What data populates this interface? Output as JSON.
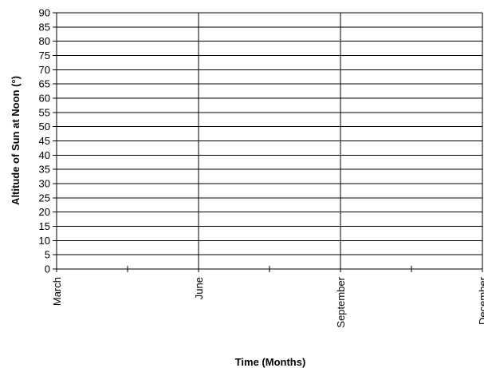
{
  "chart_data": {
    "type": "line",
    "title": "",
    "xlabel": "Time (Months)",
    "ylabel": "Altitude of Sun at Noon (°)",
    "x_categories": [
      "March",
      "June",
      "September",
      "December"
    ],
    "x_minor_ticks_between_labels": 1,
    "ylim": [
      0,
      90
    ],
    "y_tick_step": 5,
    "y_ticks": [
      0,
      5,
      10,
      15,
      20,
      25,
      30,
      35,
      40,
      45,
      50,
      55,
      60,
      65,
      70,
      75,
      80,
      85,
      90
    ],
    "grid": {
      "horizontal": true,
      "vertical_at_labels": true
    },
    "series": [],
    "colors": {
      "grid": "#000000",
      "axis": "#000000",
      "background": "#ffffff"
    }
  }
}
